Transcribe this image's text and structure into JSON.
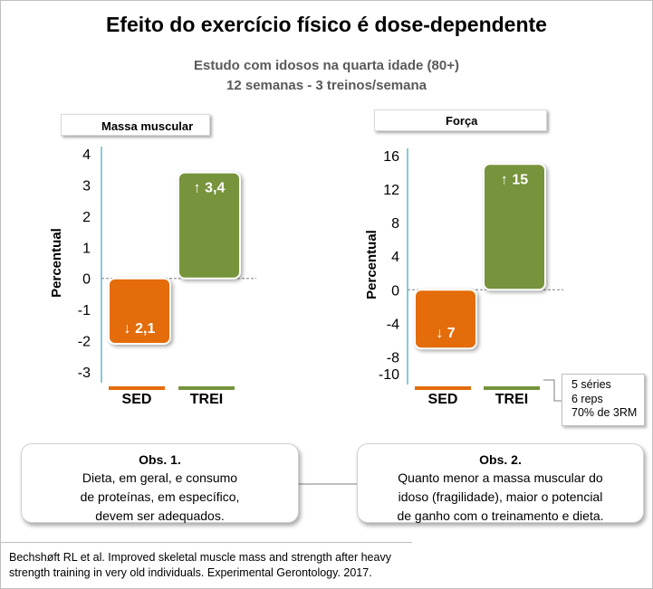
{
  "header": {
    "title": "Efeito do exercício físico é dose-dependente",
    "subtitle_line1": "Estudo com idosos na quarta idade (80+)",
    "subtitle_line2": "12 semanas - 3 treinos/semana"
  },
  "colors": {
    "sed": "#e46c0a",
    "trei": "#77933c",
    "axis": "#4bacc6"
  },
  "chart_data": [
    {
      "type": "bar",
      "title": "Massa muscular",
      "ylabel": "Percentual",
      "categories": [
        "SED",
        "TREI"
      ],
      "values": [
        -2.1,
        3.4
      ],
      "data_labels": [
        "↓ 2,1",
        "↑ 3,4"
      ],
      "ylim": [
        -3,
        4
      ],
      "yticks": [
        4,
        3,
        2,
        1,
        0,
        -1,
        -2,
        -3
      ],
      "ytick_labels": [
        "4",
        "3",
        "2",
        "1",
        "0",
        "-1",
        "-2",
        "-3"
      ]
    },
    {
      "type": "bar",
      "title": "Força",
      "ylabel": "Percentual",
      "categories": [
        "SED",
        "TREI"
      ],
      "values": [
        -7,
        15
      ],
      "data_labels": [
        "↓ 7",
        "↑ 15"
      ],
      "ylim": [
        -10,
        16
      ],
      "yticks": [
        16,
        12,
        8,
        4,
        0,
        -4,
        -8,
        -10
      ],
      "ytick_labels": [
        "16",
        "12",
        "8",
        "4",
        "0",
        "-4",
        "-8",
        "-10"
      ]
    }
  ],
  "training_note": [
    "5 séries",
    "6 reps",
    "70% de 3RM"
  ],
  "obs1": {
    "title": "Obs. 1.",
    "lines": [
      "Dieta, em geral, e consumo",
      "de proteínas, em específico,",
      "devem ser adequados."
    ]
  },
  "obs2": {
    "title": "Obs. 2.",
    "lines": [
      "Quanto menor  a massa muscular do",
      "idoso (fragilidade), maior o potencial",
      "de ganho com o treinamento e dieta."
    ]
  },
  "reference": {
    "line1": "Bechshøft RL et al. Improved skeletal muscle mass and strength after heavy",
    "line2": "strength training in very old individuals. Experimental Gerontology. 2017."
  }
}
